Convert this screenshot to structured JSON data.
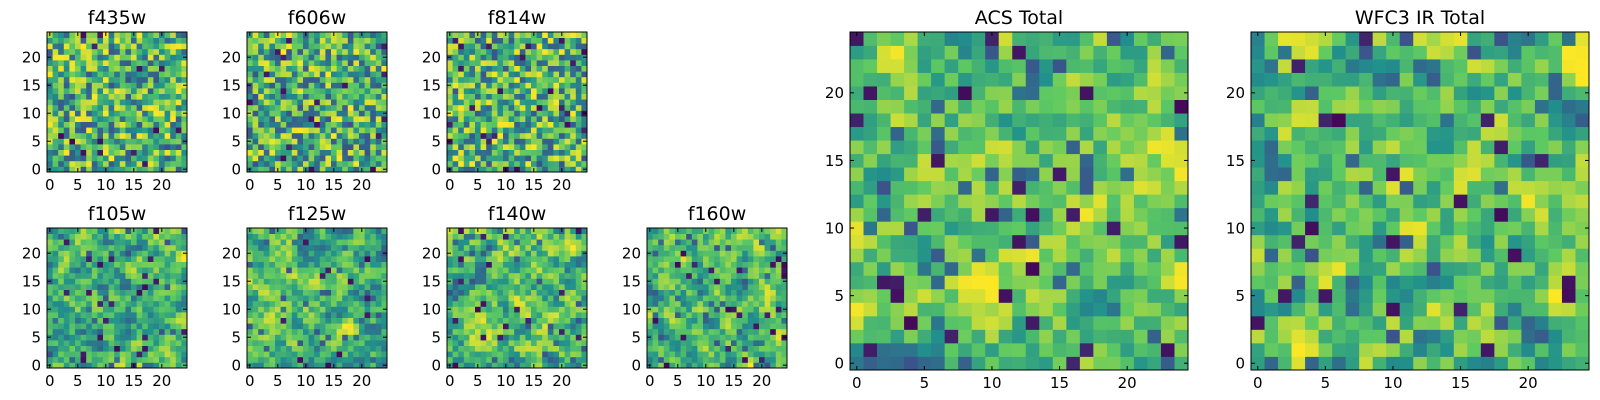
{
  "colormap": {
    "name": "viridis",
    "stops": [
      "#440154",
      "#3b528b",
      "#21918c",
      "#5ec962",
      "#fde725"
    ]
  },
  "axis_color": "#000000",
  "chart_data": [
    {
      "type": "heatmap",
      "title": "f435w",
      "grid_size": 25,
      "xlim": [
        0,
        25
      ],
      "ylim": [
        0,
        25
      ],
      "xticks": [
        0,
        5,
        10,
        15,
        20
      ],
      "yticks": [
        0,
        5,
        10,
        15,
        20
      ],
      "seed": 11
    },
    {
      "type": "heatmap",
      "title": "f606w",
      "grid_size": 25,
      "xlim": [
        0,
        25
      ],
      "ylim": [
        0,
        25
      ],
      "xticks": [
        0,
        5,
        10,
        15,
        20
      ],
      "yticks": [
        0,
        5,
        10,
        15,
        20
      ],
      "seed": 23
    },
    {
      "type": "heatmap",
      "title": "f814w",
      "grid_size": 25,
      "xlim": [
        0,
        25
      ],
      "ylim": [
        0,
        25
      ],
      "xticks": [
        0,
        5,
        10,
        15,
        20
      ],
      "yticks": [
        0,
        5,
        10,
        15,
        20
      ],
      "seed": 37
    },
    {
      "type": "heatmap",
      "title": "f105w",
      "grid_size": 25,
      "xlim": [
        0,
        25
      ],
      "ylim": [
        0,
        25
      ],
      "xticks": [
        0,
        5,
        10,
        15,
        20
      ],
      "yticks": [
        0,
        5,
        10,
        15,
        20
      ],
      "seed": 41
    },
    {
      "type": "heatmap",
      "title": "f125w",
      "grid_size": 25,
      "xlim": [
        0,
        25
      ],
      "ylim": [
        0,
        25
      ],
      "xticks": [
        0,
        5,
        10,
        15,
        20
      ],
      "yticks": [
        0,
        5,
        10,
        15,
        20
      ],
      "seed": 53
    },
    {
      "type": "heatmap",
      "title": "f140w",
      "grid_size": 25,
      "xlim": [
        0,
        25
      ],
      "ylim": [
        0,
        25
      ],
      "xticks": [
        0,
        5,
        10,
        15,
        20
      ],
      "yticks": [
        0,
        5,
        10,
        15,
        20
      ],
      "seed": 67
    },
    {
      "type": "heatmap",
      "title": "f160w",
      "grid_size": 25,
      "xlim": [
        0,
        25
      ],
      "ylim": [
        0,
        25
      ],
      "xticks": [
        0,
        5,
        10,
        15,
        20
      ],
      "yticks": [
        0,
        5,
        10,
        15,
        20
      ],
      "seed": 79
    },
    {
      "type": "heatmap",
      "title": "ACS Total",
      "grid_size": 25,
      "xlim": [
        0,
        25
      ],
      "ylim": [
        0,
        25
      ],
      "xticks": [
        0,
        5,
        10,
        15,
        20
      ],
      "yticks": [
        0,
        5,
        10,
        15,
        20
      ],
      "seed": 97
    },
    {
      "type": "heatmap",
      "title": "WFC3 IR Total",
      "grid_size": 25,
      "xlim": [
        0,
        25
      ],
      "ylim": [
        0,
        25
      ],
      "xticks": [
        0,
        5,
        10,
        15,
        20
      ],
      "yticks": [
        0,
        5,
        10,
        15,
        20
      ],
      "seed": 113
    }
  ]
}
